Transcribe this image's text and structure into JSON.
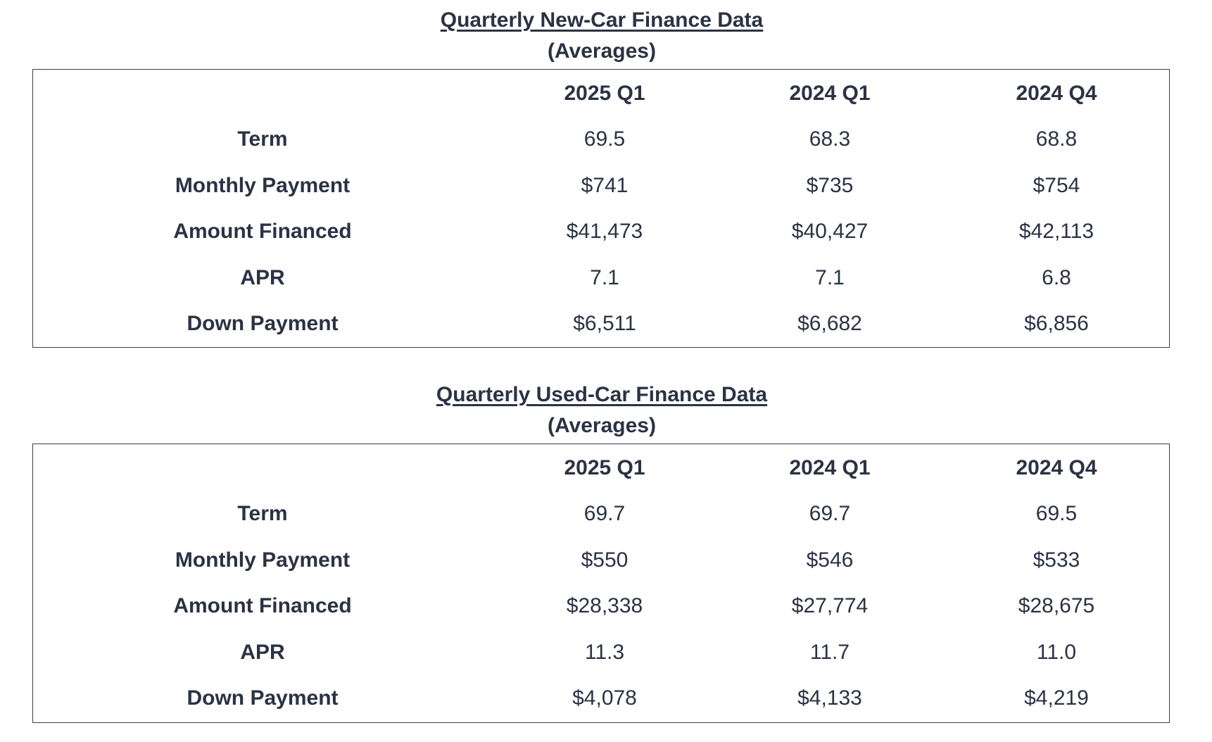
{
  "tables": [
    {
      "title": "Quarterly New-Car Finance Data",
      "subtitle": "(Averages)",
      "columns": [
        "2025 Q1",
        "2024 Q1",
        "2024 Q4"
      ],
      "rows": [
        {
          "label": "Term",
          "values": [
            "69.5",
            "68.3",
            "68.8"
          ]
        },
        {
          "label": "Monthly Payment",
          "values": [
            "$741",
            "$735",
            "$754"
          ]
        },
        {
          "label": "Amount Financed",
          "values": [
            "$41,473",
            "$40,427",
            "$42,113"
          ]
        },
        {
          "label": "APR",
          "values": [
            "7.1",
            "7.1",
            "6.8"
          ]
        },
        {
          "label": "Down Payment",
          "values": [
            "$6,511",
            "$6,682",
            "$6,856"
          ]
        }
      ]
    },
    {
      "title": "Quarterly Used-Car Finance Data",
      "subtitle": "(Averages)",
      "columns": [
        "2025 Q1",
        "2024 Q1",
        "2024 Q4"
      ],
      "rows": [
        {
          "label": "Term",
          "values": [
            "69.7",
            "69.7",
            "69.5"
          ]
        },
        {
          "label": "Monthly Payment",
          "values": [
            "$550",
            "$546",
            "$533"
          ]
        },
        {
          "label": "Amount Financed",
          "values": [
            "$28,338",
            "$27,774",
            "$28,675"
          ]
        },
        {
          "label": "APR",
          "values": [
            "11.3",
            "11.7",
            "11.0"
          ]
        },
        {
          "label": "Down Payment",
          "values": [
            "$4,078",
            "$4,133",
            "$4,219"
          ]
        }
      ]
    }
  ]
}
